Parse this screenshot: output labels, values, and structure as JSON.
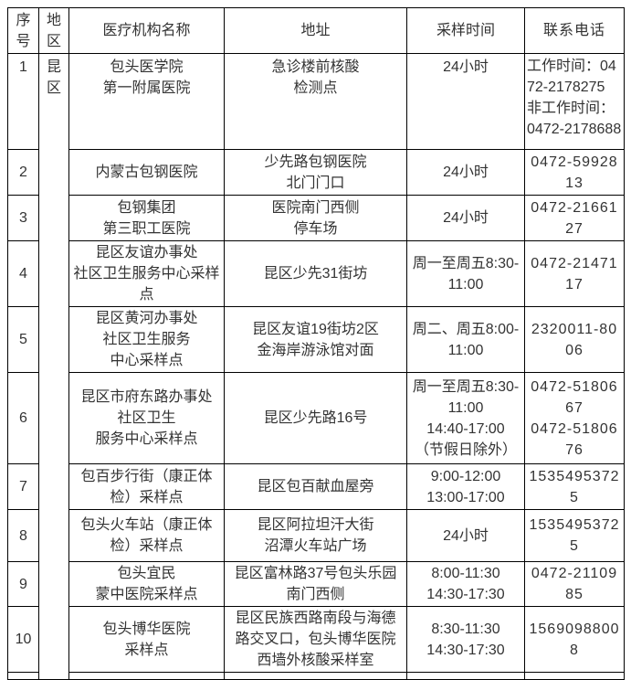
{
  "table": {
    "headers": {
      "no": "序号",
      "district": "地区",
      "name": "医疗机构名称",
      "address": "地址",
      "time": "采样时间",
      "phone": "联系电话"
    },
    "district": "昆区",
    "rows": [
      {
        "no": "1",
        "name": "包头医学院\n第一附属医院",
        "address": "急诊楼前核酸\n检测点",
        "time": "24小时",
        "phone": "工作时间：0472-2178275\n非工作时间：0472-2178688"
      },
      {
        "no": "2",
        "name": "内蒙古包钢医院",
        "address": "少先路包钢医院\n北门门口",
        "time": "24小时",
        "phone": "0472-5992813"
      },
      {
        "no": "3",
        "name": "包钢集团\n第三职工医院",
        "address": "医院南门西侧\n停车场",
        "time": "24小时",
        "phone": "0472-2166127"
      },
      {
        "no": "4",
        "name": "昆区友谊办事处\n社区卫生服务中心采样点",
        "address": "昆区少先31街坊",
        "time": "周一至周五8:30-11:00",
        "phone": "0472-2147117"
      },
      {
        "no": "5",
        "name": "昆区黄河办事处\n社区卫生服务\n中心采样点",
        "address": "昆区友谊19街坊2区\n金海岸游泳馆对面",
        "time": "周二、周五8:00-11:00",
        "phone": "2320011-8006"
      },
      {
        "no": "6",
        "name": "昆区市府东路办事处\n社区卫生\n服务中心采样点",
        "address": "昆区少先路16号",
        "time": "周一至周五8:30-11:00\n14:40-17:00\n（节假日除外）",
        "phone": "0472-5180667\n0472-5180676"
      },
      {
        "no": "7",
        "name": "包百步行街（康正体检）采样点",
        "address": "昆区包百献血屋旁",
        "time": "9:00-12:00\n13:00-17:00",
        "phone": "15354953725"
      },
      {
        "no": "8",
        "name": "包头火车站（康正体检）采样点",
        "address": "昆区阿拉坦汗大街\n沼潭火车站广场",
        "time": "24小时",
        "phone": "15354953725"
      },
      {
        "no": "9",
        "name": "包头宜民\n蒙中医院采样点",
        "address": "昆区富林路37号包头乐园\n南门西侧",
        "time": "8:00-11:30\n14:30-17:30",
        "phone": "0472-2110985"
      },
      {
        "no": "10",
        "name": "包头博华医院\n采样点",
        "address": "昆区民族西路南段与海德路交叉口，包头博华医院西墙外核酸采样室",
        "time": "8:30-11:30\n14:30-17:30",
        "phone": "15690988008"
      }
    ]
  }
}
